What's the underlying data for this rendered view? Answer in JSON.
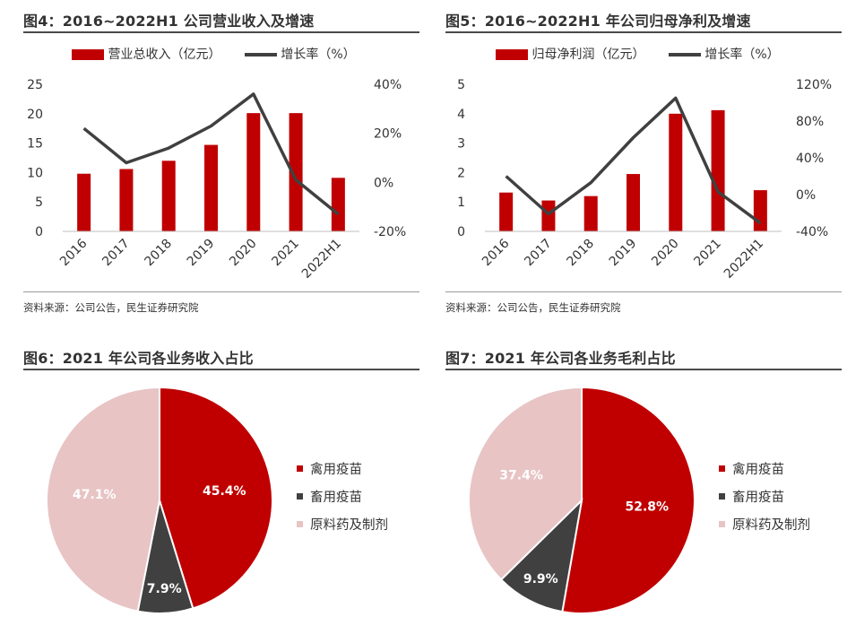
{
  "panels": {
    "p4": {
      "title": "图4：2016~2022H1 公司营业收入及增速",
      "source": "资料来源：公司公告，民生证券研究院",
      "legend": {
        "bar": "营业总收入（亿元）",
        "line": "增长率（%）"
      }
    },
    "p5": {
      "title": "图5：2016~2022H1 年公司归母净利及增速",
      "source": "资料来源：公司公告，民生证券研究院",
      "legend": {
        "bar": "归母净利润（亿元）",
        "line": "增长率（%）"
      }
    },
    "p6": {
      "title": "图6：2021 年公司各业务收入占比",
      "legend": [
        "禽用疫苗",
        "畜用疫苗",
        "原料药及制剂"
      ]
    },
    "p7": {
      "title": "图7：2021 年公司各业务毛利占比",
      "legend": [
        "禽用疫苗",
        "畜用疫苗",
        "原料药及制剂"
      ]
    }
  },
  "colors": {
    "bar": "#c00000",
    "line": "#404040",
    "dark_slice": "#404040",
    "light_slice": "#e8c4c4",
    "title_rule": "#4a4a4a"
  },
  "chart_data": [
    {
      "type": "bar",
      "categories": [
        "2016",
        "2017",
        "2018",
        "2019",
        "2020",
        "2021",
        "2022H1"
      ],
      "series": [
        {
          "name": "营业总收入（亿元）",
          "type": "bar",
          "axis": "left",
          "values": [
            9.8,
            10.6,
            12.0,
            14.7,
            20.1,
            20.1,
            9.1
          ]
        },
        {
          "name": "增长率（%）",
          "type": "line",
          "axis": "right",
          "values": [
            22,
            8,
            14,
            23,
            36,
            1,
            -13
          ]
        }
      ],
      "y_left": {
        "ylim": [
          0,
          25
        ],
        "ticks": [
          "0",
          "5",
          "10",
          "15",
          "20",
          "25"
        ],
        "tick_values": [
          0,
          5,
          10,
          15,
          20,
          25
        ]
      },
      "y_right": {
        "ylim": [
          -20,
          40
        ],
        "ticks": [
          "-20%",
          "0%",
          "20%",
          "40%"
        ],
        "tick_values": [
          -20,
          0,
          20,
          40
        ]
      },
      "grid": false,
      "legend": "top"
    },
    {
      "type": "bar",
      "categories": [
        "2016",
        "2017",
        "2018",
        "2019",
        "2020",
        "2021",
        "2022H1"
      ],
      "series": [
        {
          "name": "归母净利润（亿元）",
          "type": "bar",
          "axis": "left",
          "values": [
            1.32,
            1.05,
            1.2,
            1.95,
            4.0,
            4.12,
            1.4
          ]
        },
        {
          "name": "增长率（%）",
          "type": "line",
          "axis": "right",
          "values": [
            20,
            -21,
            13,
            62,
            105,
            3,
            -31
          ]
        }
      ],
      "y_left": {
        "ylim": [
          0,
          5
        ],
        "ticks": [
          "0",
          "1",
          "2",
          "3",
          "4",
          "5"
        ],
        "tick_values": [
          0,
          1,
          2,
          3,
          4,
          5
        ]
      },
      "y_right": {
        "ylim": [
          -40,
          120
        ],
        "ticks": [
          "-40%",
          "0%",
          "40%",
          "80%",
          "120%"
        ],
        "tick_values": [
          -40,
          0,
          40,
          80,
          120
        ]
      },
      "grid": false,
      "legend": "top"
    },
    {
      "type": "pie",
      "title": "2021 年公司各业务收入占比",
      "slices": [
        {
          "label": "禽用疫苗",
          "value": 45.4,
          "display": "45.4%"
        },
        {
          "label": "畜用疫苗",
          "value": 7.9,
          "display": "7.9%"
        },
        {
          "label": "原料药及制剂",
          "value": 47.1,
          "display": "47.1%"
        }
      ],
      "legend": "right"
    },
    {
      "type": "pie",
      "title": "2021 年公司各业务毛利占比",
      "slices": [
        {
          "label": "禽用疫苗",
          "value": 52.8,
          "display": "52.8%"
        },
        {
          "label": "畜用疫苗",
          "value": 9.9,
          "display": "9.9%"
        },
        {
          "label": "原料药及制剂",
          "value": 37.4,
          "display": "37.4%"
        }
      ],
      "legend": "right"
    }
  ]
}
